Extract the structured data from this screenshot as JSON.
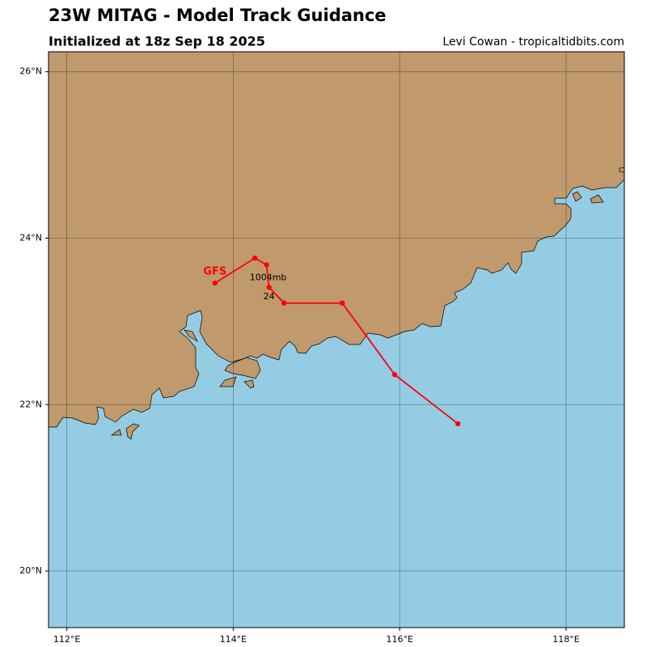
{
  "chart_data": {
    "type": "track_map",
    "title": "23W MITAG - Model Track Guidance",
    "subtitle": "Initialized at 18z Sep 18 2025",
    "credit": "Levi Cowan - tropicaltidbits.com",
    "xlim": [
      111.78,
      118.7
    ],
    "ylim": [
      19.32,
      26.24
    ],
    "xticks": [
      {
        "value": 112,
        "label": "112°E"
      },
      {
        "value": 114,
        "label": "114°E"
      },
      {
        "value": 116,
        "label": "116°E"
      },
      {
        "value": 118,
        "label": "118°E"
      }
    ],
    "yticks": [
      {
        "value": 20,
        "label": "20°N"
      },
      {
        "value": 22,
        "label": "22°N"
      },
      {
        "value": 24,
        "label": "24°N"
      },
      {
        "value": 26,
        "label": "26°N"
      }
    ],
    "grid": true,
    "series": [
      {
        "name": "GFS",
        "color": "#ff0000",
        "lon": [
          113.78,
          114.26,
          114.4,
          114.43,
          114.61,
          115.31,
          115.94,
          116.7
        ],
        "lat": [
          23.46,
          23.76,
          23.68,
          23.41,
          23.22,
          23.22,
          22.36,
          21.77
        ],
        "pressure_label": "1004mb",
        "hour_label": "24"
      }
    ]
  }
}
